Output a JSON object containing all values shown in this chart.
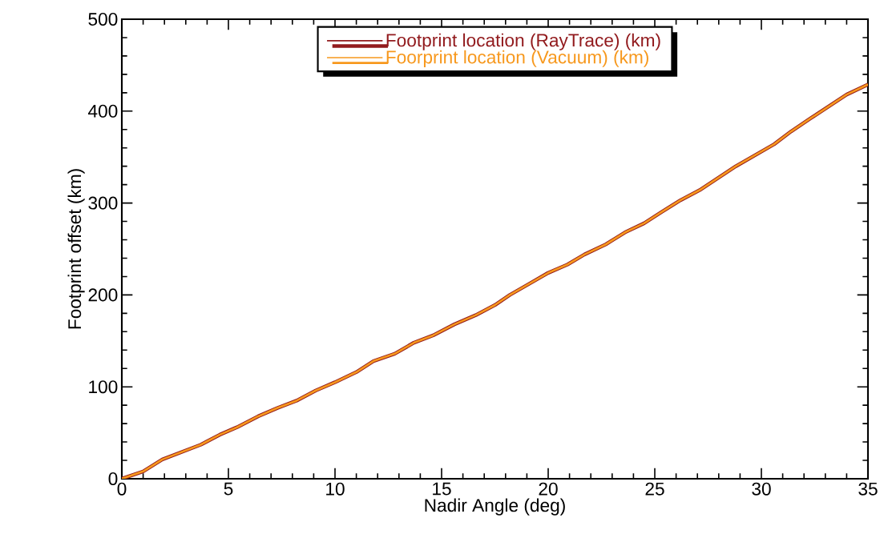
{
  "chart_data": {
    "type": "line",
    "xlabel": "Nadir Angle (deg)",
    "ylabel": "Footprint offset (km)",
    "x": [
      0,
      1.0,
      1.9,
      3.7,
      4.6,
      5.4,
      6.4,
      7.3,
      8.2,
      9.1,
      10.0,
      11.0,
      11.8,
      12.8,
      13.7,
      14.6,
      15.6,
      16.6,
      17.5,
      18.2,
      19.1,
      20.0,
      20.9,
      21.7,
      22.7,
      23.6,
      24.5,
      25.3,
      26.2,
      27.1,
      28.8,
      29.7,
      30.6,
      31.4,
      32.3,
      34.0,
      35
    ],
    "series": [
      {
        "name": "Footprint location (RayTrace) (km)",
        "color": "#921b1e",
        "values": [
          0,
          8,
          21,
          37,
          48,
          56,
          68,
          77,
          85,
          96,
          105,
          116,
          128,
          136,
          148,
          156,
          168,
          178,
          189,
          200,
          212,
          224,
          233,
          244,
          255,
          268,
          278,
          290,
          303,
          314,
          340,
          352,
          364,
          378,
          392,
          418,
          429
        ]
      },
      {
        "name": "Foorprint location (Vacuum) (km)",
        "color": "#f7981d",
        "values": [
          0,
          8,
          21,
          37,
          48,
          56,
          68,
          77,
          85,
          96,
          105,
          116,
          128,
          136,
          148,
          156,
          168,
          178,
          189,
          200,
          212,
          224,
          233,
          244,
          255,
          268,
          278,
          290,
          303,
          314,
          340,
          352,
          364,
          378,
          392,
          418,
          429
        ]
      }
    ],
    "xlim": [
      0,
      35
    ],
    "xticks": [
      0,
      5,
      10,
      15,
      20,
      25,
      30,
      35
    ],
    "ylim": [
      0,
      500
    ],
    "yticks": [
      0,
      100,
      200,
      300,
      400,
      500
    ],
    "legend": "top",
    "grid": false,
    "marker": "none",
    "line_style": "solid"
  }
}
